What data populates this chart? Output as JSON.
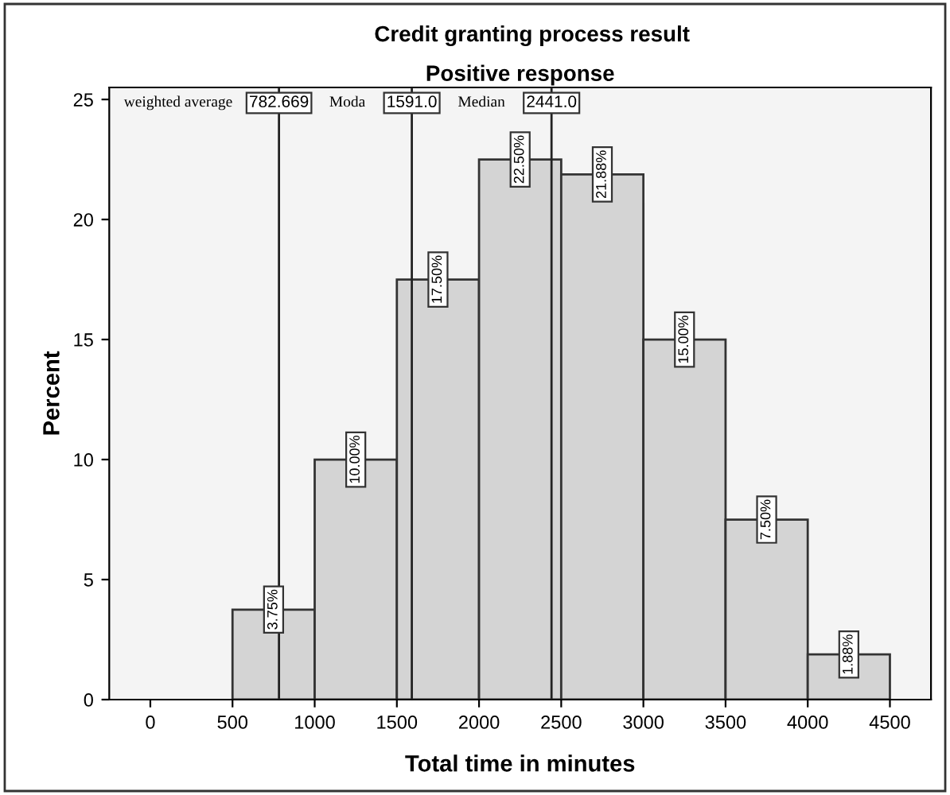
{
  "chart_data": {
    "type": "histogram",
    "title": "Credit granting process result",
    "subtitle": "Positive response",
    "xlabel": "Total time in minutes",
    "ylabel": "Percent",
    "bins": [
      500,
      1000,
      1500,
      2000,
      2500,
      3000,
      3500,
      4000,
      4500
    ],
    "values": [
      3.75,
      10.0,
      17.5,
      22.5,
      21.88,
      15.0,
      7.5,
      1.88
    ],
    "value_labels": [
      "3.75%",
      "10.00%",
      "17.50%",
      "22.50%",
      "21.88%",
      "15.00%",
      "7.50%",
      "1.88%"
    ],
    "color": "#d4d4d4",
    "xlim": [
      -250,
      4750
    ],
    "xticks": [
      0,
      500,
      1000,
      1500,
      2000,
      2500,
      3000,
      3500,
      4000,
      4500
    ],
    "ylim": [
      0,
      25.5
    ],
    "yticks": [
      0,
      5,
      10,
      15,
      20,
      25
    ],
    "ref_lines": [
      {
        "axis": "x",
        "value": 782.669,
        "label": "weighted average 782.669"
      },
      {
        "axis": "x",
        "value": 1591.0,
        "label": "Moda 1591.0"
      },
      {
        "axis": "x",
        "value": 2441.0,
        "label": "Median 2441.0"
      }
    ],
    "grid": false,
    "legend": false
  }
}
